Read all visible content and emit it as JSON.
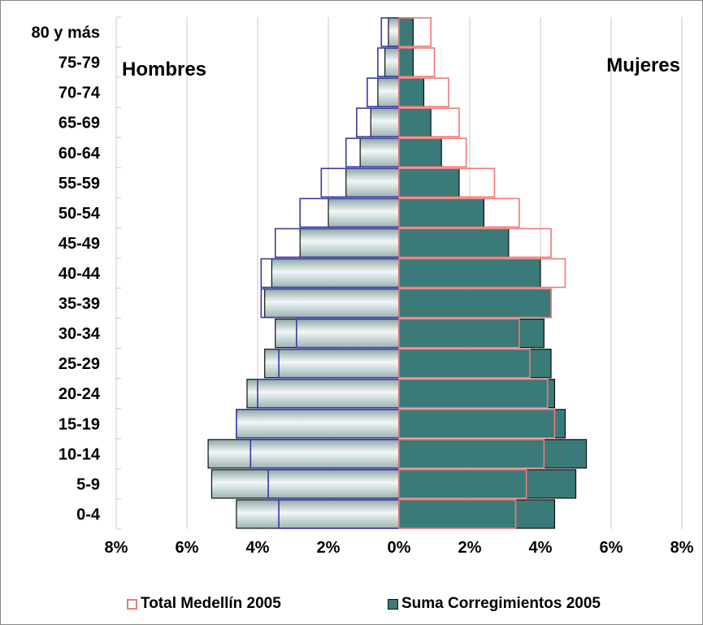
{
  "colors": {
    "total_women_outline": "#f07878",
    "total_men_outline": "#3a3a9e",
    "suma_women_fill": "#3a7a78",
    "suma_men_fill": "#cfdcdc",
    "bar_edge": "#111111",
    "grid": "#c8c8c8"
  },
  "chart_data": {
    "type": "bar",
    "orientation": "horizontal",
    "categories": [
      "0-4",
      "5-9",
      "10-14",
      "15-19",
      "20-24",
      "25-29",
      "30-34",
      "35-39",
      "40-44",
      "45-49",
      "50-54",
      "55-59",
      "60-64",
      "65-69",
      "70-74",
      "75-79",
      "80 y más"
    ],
    "xlim": [
      -8,
      8
    ],
    "xticks": [
      -8,
      -6,
      -4,
      -2,
      0,
      2,
      4,
      6,
      8
    ],
    "xtick_labels": [
      "8%",
      "6%",
      "4%",
      "2%",
      "0%",
      "2%",
      "4%",
      "6%",
      "8%"
    ],
    "gridlines": "vertical",
    "side_labels": {
      "left": "Hombres",
      "right": "Mujeres"
    },
    "legend_position": "bottom",
    "series": [
      {
        "name": "Total Medellín 2005",
        "style": "outline",
        "men": [
          3.4,
          3.7,
          4.2,
          4.6,
          4.0,
          3.4,
          2.9,
          3.9,
          3.9,
          3.5,
          2.8,
          2.2,
          1.5,
          1.2,
          0.9,
          0.6,
          0.5
        ],
        "women": [
          3.3,
          3.6,
          4.1,
          4.4,
          4.2,
          3.7,
          3.4,
          4.3,
          4.7,
          4.3,
          3.4,
          2.7,
          1.9,
          1.7,
          1.4,
          1.0,
          0.9
        ]
      },
      {
        "name": "Suma Corregimientos 2005",
        "style": "filled",
        "men": [
          4.6,
          5.3,
          5.4,
          4.6,
          4.3,
          3.8,
          3.5,
          3.8,
          3.6,
          2.8,
          2.0,
          1.5,
          1.1,
          0.8,
          0.6,
          0.4,
          0.3
        ],
        "women": [
          4.4,
          5.0,
          5.3,
          4.7,
          4.4,
          4.3,
          4.1,
          4.3,
          4.0,
          3.1,
          2.4,
          1.7,
          1.2,
          0.9,
          0.7,
          0.4,
          0.4
        ]
      }
    ]
  }
}
